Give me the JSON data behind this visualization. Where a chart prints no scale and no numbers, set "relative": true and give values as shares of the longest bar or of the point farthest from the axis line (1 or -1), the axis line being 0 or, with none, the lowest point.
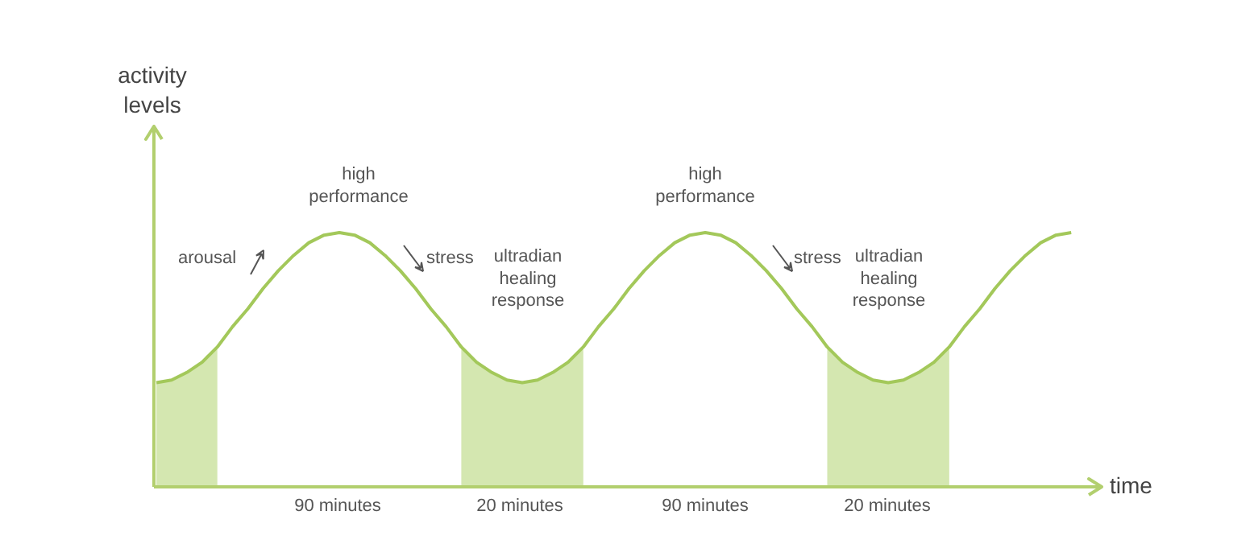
{
  "chart_data": {
    "type": "line",
    "relative": true,
    "xlabel": "time",
    "categories": [
      null,
      null,
      null,
      null,
      null,
      null,
      null,
      null,
      null,
      null,
      null,
      null,
      null,
      null,
      null,
      null,
      null,
      null,
      null,
      null,
      null,
      null,
      null,
      null,
      null,
      null,
      null,
      null,
      null,
      null,
      null,
      null,
      null,
      null,
      null,
      null,
      null,
      null,
      null,
      null,
      null,
      null,
      null,
      null,
      null,
      null,
      null,
      null,
      null,
      null,
      null,
      null,
      null,
      null,
      null,
      null,
      null,
      null,
      null,
      null,
      null
    ],
    "series": [
      {
        "type": "area",
        "color": "#d4e7b0",
        "values": [
          0.41,
          0.42,
          0.45,
          0.49,
          0.55,
          null,
          null,
          null,
          null,
          null,
          null,
          null,
          null,
          null,
          null,
          null,
          null,
          null,
          null,
          null,
          0.55,
          0.49,
          0.45,
          0.42,
          0.41,
          0.42,
          0.45,
          0.49,
          0.55,
          null,
          null,
          null,
          null,
          null,
          null,
          null,
          null,
          null,
          null,
          null,
          null,
          null,
          null,
          null,
          0.55,
          0.49,
          0.45,
          0.42,
          0.41,
          0.42,
          0.45,
          0.49,
          0.55,
          null,
          null,
          null,
          null,
          null,
          null,
          null,
          null
        ]
      },
      {
        "color": "#a3c85a",
        "values": [
          0.41,
          0.42,
          0.45,
          0.49,
          0.55,
          0.63,
          0.7,
          0.78,
          0.85,
          0.91,
          0.96,
          0.99,
          1.0,
          0.99,
          0.96,
          0.91,
          0.85,
          0.78,
          0.7,
          0.63,
          0.55,
          0.49,
          0.45,
          0.42,
          0.41,
          0.42,
          0.45,
          0.49,
          0.55,
          0.63,
          0.7,
          0.78,
          0.85,
          0.91,
          0.96,
          0.99,
          1.0,
          0.99,
          0.96,
          0.91,
          0.85,
          0.78,
          0.7,
          0.63,
          0.55,
          0.49,
          0.45,
          0.42,
          0.41,
          0.42,
          0.45,
          0.49,
          0.55,
          0.63,
          0.7,
          0.78,
          0.85,
          0.91,
          0.96,
          0.99,
          1.0
        ]
      }
    ],
    "annotations": [
      "activity levels",
      "arousal",
      "high performance",
      "stress",
      "ultradian healing response",
      "high performance",
      "stress",
      "ultradian healing response",
      "90 minutes",
      "20 minutes",
      "90 minutes",
      "20 minutes"
    ]
  }
}
